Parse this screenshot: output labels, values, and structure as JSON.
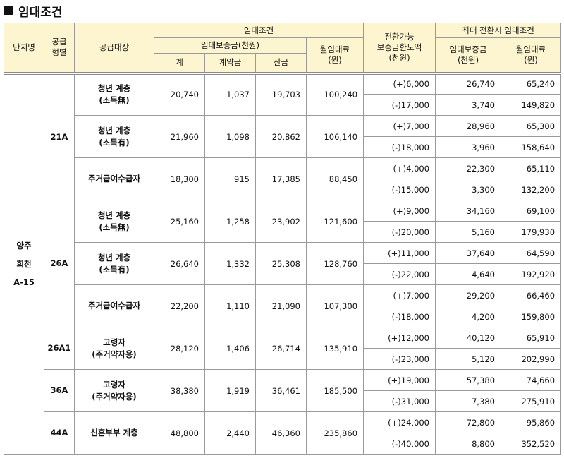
{
  "title": "임대조건",
  "header": {
    "complex": "단지명",
    "supply_type": [
      "공급",
      "형별"
    ],
    "target": "공급대상",
    "lease": "임대조건",
    "deposit": "임대보증금(천원)",
    "total": "계",
    "contract": "계약금",
    "balance": "잔금",
    "rent": [
      "월임대료",
      "(원)"
    ],
    "conversion": [
      "전환가능",
      "보증금한도액",
      "(천원)"
    ],
    "max": "최대 전환시 임대조건",
    "max_deposit": [
      "임대보증금",
      "(천원)"
    ],
    "max_rent": [
      "월임대료",
      "(원)"
    ]
  },
  "complex": [
    "양주",
    "회천",
    "A-15"
  ],
  "types": [
    {
      "type": "21A",
      "targets": [
        {
          "name": [
            "청년 계층",
            "(소득無)"
          ],
          "total": "20,740",
          "contract": "1,037",
          "balance": "19,703",
          "rent": "100,240",
          "options": [
            {
              "limit": "(+)6,000",
              "deposit": "26,740",
              "rent": "65,240"
            },
            {
              "limit": "(-)17,000",
              "deposit": "3,740",
              "rent": "149,820"
            }
          ]
        },
        {
          "name": [
            "청년 계층",
            "(소득有)"
          ],
          "total": "21,960",
          "contract": "1,098",
          "balance": "20,862",
          "rent": "106,140",
          "options": [
            {
              "limit": "(+)7,000",
              "deposit": "28,960",
              "rent": "65,300"
            },
            {
              "limit": "(-)18,000",
              "deposit": "3,960",
              "rent": "158,640"
            }
          ]
        },
        {
          "name": [
            "주거급여수급자"
          ],
          "total": "18,300",
          "contract": "915",
          "balance": "17,385",
          "rent": "88,450",
          "options": [
            {
              "limit": "(+)4,000",
              "deposit": "22,300",
              "rent": "65,110"
            },
            {
              "limit": "(-)15,000",
              "deposit": "3,300",
              "rent": "132,200"
            }
          ]
        }
      ]
    },
    {
      "type": "26A",
      "targets": [
        {
          "name": [
            "청년 계층",
            "(소득無)"
          ],
          "total": "25,160",
          "contract": "1,258",
          "balance": "23,902",
          "rent": "121,600",
          "options": [
            {
              "limit": "(+)9,000",
              "deposit": "34,160",
              "rent": "69,100"
            },
            {
              "limit": "(-)20,000",
              "deposit": "5,160",
              "rent": "179,930"
            }
          ]
        },
        {
          "name": [
            "청년 계층",
            "(소득有)"
          ],
          "total": "26,640",
          "contract": "1,332",
          "balance": "25,308",
          "rent": "128,760",
          "options": [
            {
              "limit": "(+)11,000",
              "deposit": "37,640",
              "rent": "64,590"
            },
            {
              "limit": "(-)22,000",
              "deposit": "4,640",
              "rent": "192,920"
            }
          ]
        },
        {
          "name": [
            "주거급여수급자"
          ],
          "total": "22,200",
          "contract": "1,110",
          "balance": "21,090",
          "rent": "107,300",
          "options": [
            {
              "limit": "(+)7,000",
              "deposit": "29,200",
              "rent": "66,460"
            },
            {
              "limit": "(-)18,000",
              "deposit": "4,200",
              "rent": "159,800"
            }
          ]
        }
      ]
    },
    {
      "type": "26A1",
      "targets": [
        {
          "name": [
            "고령자",
            "(주거약자용)"
          ],
          "total": "28,120",
          "contract": "1,406",
          "balance": "26,714",
          "rent": "135,910",
          "options": [
            {
              "limit": "(+)12,000",
              "deposit": "40,120",
              "rent": "65,910"
            },
            {
              "limit": "(-)23,000",
              "deposit": "5,120",
              "rent": "202,990"
            }
          ]
        }
      ]
    },
    {
      "type": "36A",
      "targets": [
        {
          "name": [
            "고령자",
            "(주거약자용)"
          ],
          "total": "38,380",
          "contract": "1,919",
          "balance": "36,461",
          "rent": "185,500",
          "options": [
            {
              "limit": "(+)19,000",
              "deposit": "57,380",
              "rent": "74,660"
            },
            {
              "limit": "(-)31,000",
              "deposit": "7,380",
              "rent": "275,910"
            }
          ]
        }
      ]
    },
    {
      "type": "44A",
      "targets": [
        {
          "name": [
            "신혼부부 계층"
          ],
          "total": "48,800",
          "contract": "2,440",
          "balance": "46,360",
          "rent": "235,860",
          "options": [
            {
              "limit": "(+)24,000",
              "deposit": "72,800",
              "rent": "95,860"
            },
            {
              "limit": "(-)40,000",
              "deposit": "8,800",
              "rent": "352,520"
            }
          ]
        }
      ]
    }
  ]
}
